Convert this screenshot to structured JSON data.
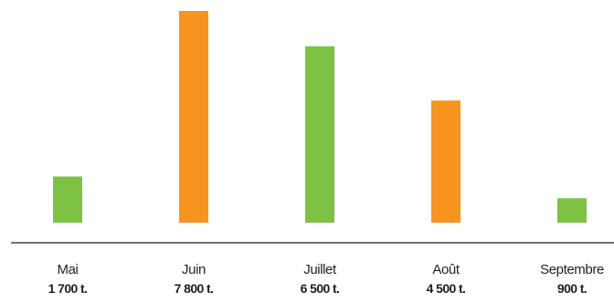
{
  "chart_data": {
    "type": "bar",
    "categories": [
      "Mai",
      "Juin",
      "Juillet",
      "Août",
      "Septembre"
    ],
    "values": [
      1700,
      7800,
      6500,
      4500,
      900
    ],
    "value_labels": [
      "1 700 t.",
      "7 800 t.",
      "6 500 t.",
      "4 500 t.",
      "900 t."
    ],
    "bar_colors": [
      "#7dc242",
      "#f7941d",
      "#7dc242",
      "#f7941d",
      "#7dc242"
    ],
    "ylim": [
      0,
      7800
    ],
    "grid": false,
    "legend": "none"
  },
  "colors": {
    "green": "#7dc242",
    "orange": "#f7941d",
    "axis": "#231f20",
    "text": "#231f20"
  }
}
